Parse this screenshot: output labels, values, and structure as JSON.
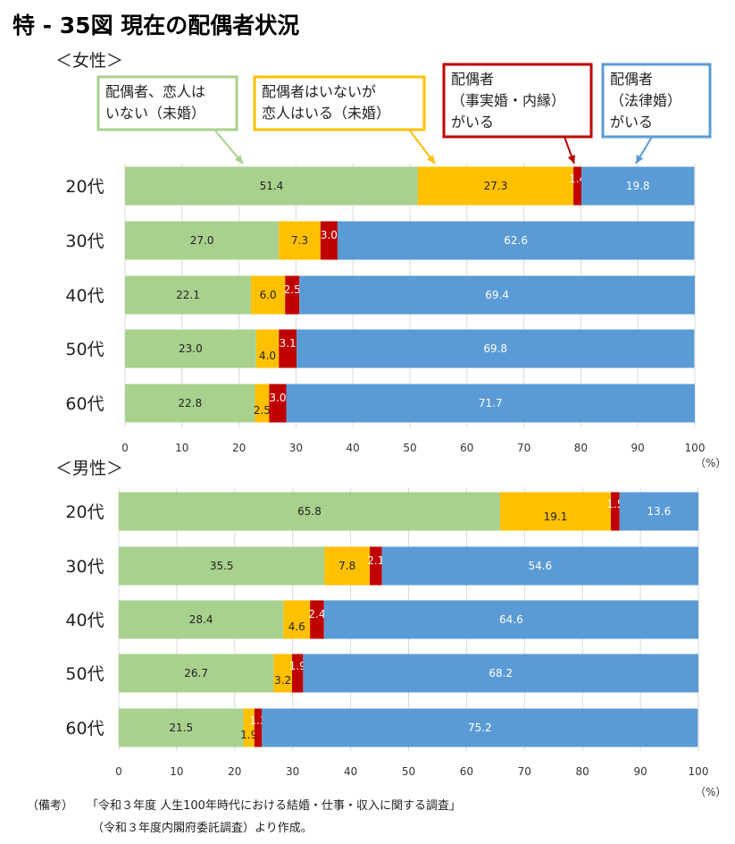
{
  "title": "特 - 35図 現在の配偶者状況",
  "unit_label": "（%）",
  "legend": [
    {
      "lines": [
        "配偶者、恋人は",
        "いない（未婚）"
      ],
      "color": "#a9d18e"
    },
    {
      "lines": [
        "配偶者はいないが",
        "恋人はいる（未婚）"
      ],
      "color": "#ffc000"
    },
    {
      "lines": [
        "配偶者",
        "（事実婚・内縁）",
        "がいる"
      ],
      "color": "#c00000"
    },
    {
      "lines": [
        "配偶者",
        "（法律婚）",
        "がいる"
      ],
      "color": "#5b9bd5"
    }
  ],
  "chart_data": [
    {
      "type": "bar",
      "stacked": true,
      "orientation": "horizontal",
      "title": "＜女性＞",
      "categories": [
        "20代",
        "30代",
        "40代",
        "50代",
        "60代"
      ],
      "xlim": [
        0,
        100
      ],
      "xticks": [
        0,
        10,
        20,
        30,
        40,
        50,
        60,
        70,
        80,
        90,
        100
      ],
      "grid": true,
      "series": [
        {
          "values": [
            51.4,
            27.0,
            22.1,
            23.0,
            22.8
          ],
          "labels": [
            "51.4",
            "27.0",
            "22.1",
            "23.0",
            "22.8"
          ],
          "color": "#a9d18e"
        },
        {
          "values": [
            27.3,
            7.3,
            6.0,
            4.0,
            2.5
          ],
          "labels": [
            "27.3",
            "7.3",
            "6.0",
            "4.0",
            "2.5"
          ],
          "color": "#ffc000"
        },
        {
          "values": [
            1.4,
            3.0,
            2.5,
            3.1,
            3.0
          ],
          "labels": [
            "1.4",
            "3.0",
            "2.5",
            "3.1",
            "3.0"
          ],
          "color": "#c00000"
        },
        {
          "values": [
            19.8,
            62.6,
            69.4,
            69.8,
            71.7
          ],
          "labels": [
            "19.8",
            "62.6",
            "69.4",
            "69.8",
            "71.7"
          ],
          "color": "#5b9bd5"
        }
      ]
    },
    {
      "type": "bar",
      "stacked": true,
      "orientation": "horizontal",
      "title": "＜男性＞",
      "categories": [
        "20代",
        "30代",
        "40代",
        "50代",
        "60代"
      ],
      "xlim": [
        0,
        100
      ],
      "xticks": [
        0,
        10,
        20,
        30,
        40,
        50,
        60,
        70,
        80,
        90,
        100
      ],
      "grid": true,
      "series": [
        {
          "values": [
            65.8,
            35.5,
            28.4,
            26.7,
            21.5
          ],
          "labels": [
            "65.8",
            "35.5",
            "28.4",
            "26.7",
            "21.5"
          ],
          "color": "#a9d18e"
        },
        {
          "values": [
            19.1,
            7.8,
            4.6,
            3.2,
            1.9
          ],
          "labels": [
            "19.1",
            "7.8",
            "4.6",
            "3.2",
            "1.9"
          ],
          "color": "#ffc000"
        },
        {
          "values": [
            1.5,
            2.1,
            2.4,
            1.9,
            1.3
          ],
          "labels": [
            "1.5",
            "2.1",
            "2.4",
            "1.9",
            "1.3"
          ],
          "color": "#c00000"
        },
        {
          "values": [
            13.6,
            54.6,
            64.6,
            68.2,
            75.2
          ],
          "labels": [
            "13.6",
            "54.6",
            "64.6",
            "68.2",
            "75.2"
          ],
          "color": "#5b9bd5"
        }
      ]
    }
  ],
  "footnote": {
    "label": "（備考）",
    "line1": "「令和３年度 人生100年時代における結婚・仕事・収入に関する調査」",
    "line2": "（令和３年度内閣府委託調査）より作成。"
  }
}
